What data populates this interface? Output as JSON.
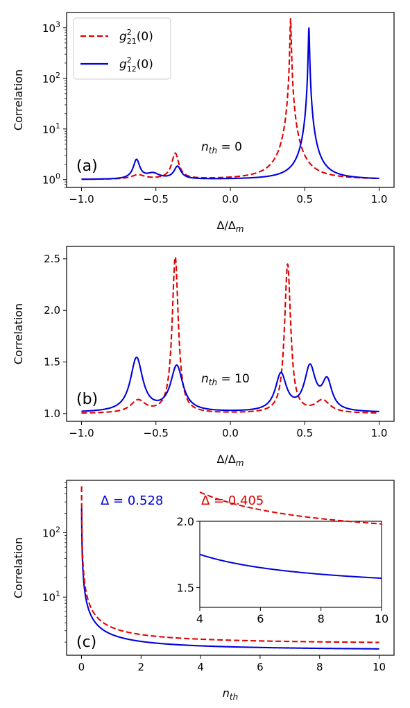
{
  "colors": {
    "red": "#e00000",
    "blue": "#0000dd"
  },
  "legend": {
    "placement": "upper-left",
    "entries": [
      {
        "label_main": "g",
        "label_sup": "2",
        "label_sub": "21",
        "label_tail": "(0)",
        "style": "dashed",
        "color": "#e00000"
      },
      {
        "label_main": "g",
        "label_sup": "2",
        "label_sub": "12",
        "label_tail": "(0)",
        "style": "solid",
        "color": "#0000dd"
      }
    ]
  },
  "chart_data": [
    {
      "panel_label": "(a)",
      "type": "line",
      "ylabel": "Correlation",
      "xlabel_main": "Δ/Δ",
      "xlabel_sub": "m",
      "annotation_main": "n",
      "annotation_sub": "th",
      "annotation_tail": " = 0",
      "xlim": [
        -1.1,
        1.1
      ],
      "ylim": [
        0.7,
        2000
      ],
      "yscale": "log",
      "xticks": [
        -1.0,
        -0.5,
        0.0,
        0.5,
        1.0
      ],
      "xtick_labels": [
        "−1.0",
        "−0.5",
        "0.0",
        "0.5",
        "1.0"
      ],
      "yticks": [
        1,
        10,
        100,
        1000
      ],
      "ytick_labels": [
        {
          "base": "10",
          "exp": "0"
        },
        {
          "base": "10",
          "exp": "1"
        },
        {
          "base": "10",
          "exp": "2"
        },
        {
          "base": "10",
          "exp": "3"
        }
      ],
      "series": [
        {
          "name": "g21",
          "style": "dashed",
          "baseline": 1.0,
          "peaks": [
            {
              "x0": -0.62,
              "height": 0.22,
              "width": 0.05
            },
            {
              "x0": -0.37,
              "height": 2.3,
              "width": 0.022
            },
            {
              "x0": 0.405,
              "height": 1500,
              "width": 0.0035
            }
          ]
        },
        {
          "name": "g12",
          "style": "solid",
          "baseline": 1.0,
          "peaks": [
            {
              "x0": -0.63,
              "height": 1.45,
              "width": 0.022
            },
            {
              "x0": -0.52,
              "height": 0.3,
              "width": 0.05
            },
            {
              "x0": -0.355,
              "height": 0.8,
              "width": 0.025
            },
            {
              "x0": 0.528,
              "height": 990,
              "width": 0.0035
            }
          ]
        }
      ]
    },
    {
      "panel_label": "(b)",
      "type": "line",
      "ylabel": "Correlation",
      "xlabel_main": "Δ/Δ",
      "xlabel_sub": "m",
      "annotation_main": "n",
      "annotation_sub": "th",
      "annotation_tail": " = 10",
      "xlim": [
        -1.1,
        1.1
      ],
      "ylim": [
        0.925,
        2.62
      ],
      "yscale": "linear",
      "xticks": [
        -1.0,
        -0.5,
        0.0,
        0.5,
        1.0
      ],
      "xtick_labels": [
        "−1.0",
        "−0.5",
        "0.0",
        "0.5",
        "1.0"
      ],
      "yticks": [
        1.0,
        1.5,
        2.0,
        2.5
      ],
      "ytick_labels": [
        "1.0",
        "1.5",
        "2.0",
        "2.5"
      ],
      "series": [
        {
          "name": "g21",
          "style": "dashed",
          "baseline": 1.0,
          "peaks": [
            {
              "x0": -0.62,
              "height": 0.12,
              "width": 0.06
            },
            {
              "x0": -0.37,
              "height": 1.51,
              "width": 0.025
            },
            {
              "x0": 0.385,
              "height": 1.44,
              "width": 0.025
            },
            {
              "x0": 0.62,
              "height": 0.12,
              "width": 0.06
            }
          ]
        },
        {
          "name": "g12",
          "style": "solid",
          "baseline": 1.01,
          "peaks": [
            {
              "x0": -0.63,
              "height": 0.52,
              "width": 0.05
            },
            {
              "x0": -0.36,
              "height": 0.44,
              "width": 0.05
            },
            {
              "x0": 0.34,
              "height": 0.36,
              "width": 0.045
            },
            {
              "x0": 0.535,
              "height": 0.42,
              "width": 0.045
            },
            {
              "x0": 0.65,
              "height": 0.28,
              "width": 0.04
            }
          ]
        }
      ]
    },
    {
      "panel_label": "(c)",
      "type": "line",
      "ylabel": "Correlation",
      "xlabel_main": "n",
      "xlabel_sub": "th",
      "xlim": [
        -0.5,
        10.5
      ],
      "ylim": [
        1.25,
        650
      ],
      "yscale": "log",
      "xticks": [
        0,
        2,
        4,
        6,
        8,
        10
      ],
      "xtick_labels": [
        "0",
        "2",
        "4",
        "6",
        "8",
        "10"
      ],
      "yticks": [
        10,
        100
      ],
      "ytick_labels": [
        {
          "base": "10",
          "exp": "1"
        },
        {
          "base": "10",
          "exp": "2"
        }
      ],
      "labels": [
        {
          "text": "Δ = 0.528",
          "color": "#0000dd"
        },
        {
          "text": "Δ = 0.405",
          "color": "#e00000"
        }
      ],
      "series": [
        {
          "name": "Δ = 0.528",
          "style": "solid",
          "asymptote": 1.45,
          "c": 1.2,
          "x_start": 0.005,
          "x_end": 10
        },
        {
          "name": "Δ = 0.405",
          "style": "dashed",
          "asymptote": 1.82,
          "c": 1.6,
          "x_start": 0.003,
          "x_end": 10
        }
      ],
      "inset": {
        "xlim": [
          4,
          10
        ],
        "ylim": [
          1.35,
          2.0
        ],
        "xticks": [
          4,
          6,
          8,
          10
        ],
        "xtick_labels": [
          "4",
          "6",
          "8",
          "10"
        ],
        "yticks": [
          1.5,
          2.0
        ],
        "ytick_labels": [
          "1.5",
          "2.0"
        ]
      }
    }
  ]
}
